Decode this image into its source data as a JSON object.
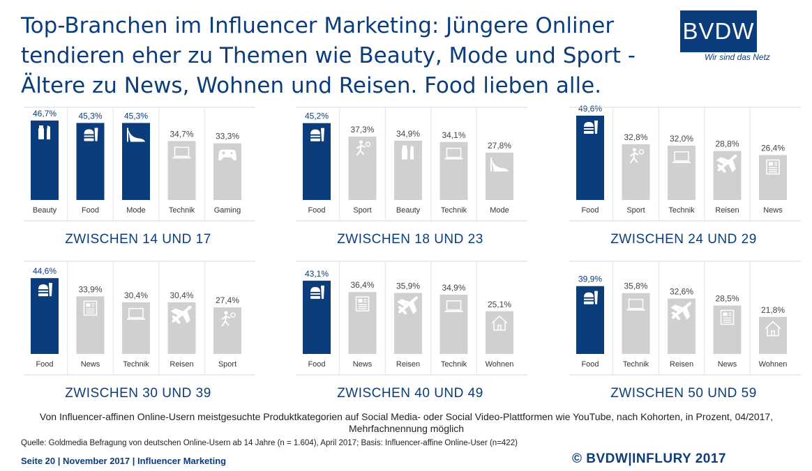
{
  "title": "Top-Branchen im Influencer Marketing: Jüngere Onliner tendieren eher zu Themen wie Beauty, Mode und Sport - Ältere zu News, Wohnen und Reisen. Food lieben alle.",
  "logo": {
    "text": "BVDW",
    "tagline": "Wir sind das Netz"
  },
  "colors": {
    "highlight": "#0b3d7d",
    "normal": "#d0d0d0",
    "icon": "#ffffff"
  },
  "chart_data": [
    {
      "type": "bar",
      "title": "ZWISCHEN 14 UND 17",
      "categories": [
        "Beauty",
        "Food",
        "Mode",
        "Technik",
        "Gaming"
      ],
      "values": [
        46.7,
        45.3,
        45.3,
        34.7,
        33.3
      ],
      "labels": [
        "46,7%",
        "45,3%",
        "45,3%",
        "34,7%",
        "33,3%"
      ],
      "highlighted": [
        true,
        true,
        true,
        false,
        false
      ],
      "icons": [
        "beauty-icon",
        "food-icon",
        "shoe-icon",
        "laptop-icon",
        "gamepad-icon"
      ],
      "ylim": [
        0,
        50
      ]
    },
    {
      "type": "bar",
      "title": "ZWISCHEN 18 UND 23",
      "categories": [
        "Food",
        "Sport",
        "Beauty",
        "Technik",
        "Mode"
      ],
      "values": [
        45.2,
        37.3,
        34.9,
        34.1,
        27.8
      ],
      "labels": [
        "45,2%",
        "37,3%",
        "34,9%",
        "34,1%",
        "27,8%"
      ],
      "highlighted": [
        true,
        false,
        false,
        false,
        false
      ],
      "icons": [
        "food-icon",
        "sport-icon",
        "beauty-icon",
        "laptop-icon",
        "shoe-icon"
      ],
      "ylim": [
        0,
        50
      ]
    },
    {
      "type": "bar",
      "title": "ZWISCHEN 24 UND 29",
      "categories": [
        "Food",
        "Sport",
        "Technik",
        "Reisen",
        "News"
      ],
      "values": [
        49.6,
        32.8,
        32.0,
        28.8,
        26.4
      ],
      "labels": [
        "49,6%",
        "32,8%",
        "32,0%",
        "28,8%",
        "26,4%"
      ],
      "highlighted": [
        true,
        false,
        false,
        false,
        false
      ],
      "icons": [
        "food-icon",
        "sport-icon",
        "laptop-icon",
        "plane-icon",
        "newspaper-icon"
      ],
      "ylim": [
        0,
        50
      ]
    },
    {
      "type": "bar",
      "title": "ZWISCHEN 30 UND 39",
      "categories": [
        "Food",
        "News",
        "Technik",
        "Reisen",
        "Sport"
      ],
      "values": [
        44.6,
        33.9,
        30.4,
        30.4,
        27.4
      ],
      "labels": [
        "44,6%",
        "33,9%",
        "30,4%",
        "30,4%",
        "27,4%"
      ],
      "highlighted": [
        true,
        false,
        false,
        false,
        false
      ],
      "icons": [
        "food-icon",
        "newspaper-icon",
        "laptop-icon",
        "plane-icon",
        "sport-icon"
      ],
      "ylim": [
        0,
        50
      ]
    },
    {
      "type": "bar",
      "title": "ZWISCHEN 40 UND 49",
      "categories": [
        "Food",
        "News",
        "Reisen",
        "Technik",
        "Wohnen"
      ],
      "values": [
        43.1,
        36.4,
        35.9,
        34.9,
        25.1
      ],
      "labels": [
        "43,1%",
        "36,4%",
        "35,9%",
        "34,9%",
        "25,1%"
      ],
      "highlighted": [
        true,
        false,
        false,
        false,
        false
      ],
      "icons": [
        "food-icon",
        "newspaper-icon",
        "plane-icon",
        "laptop-icon",
        "house-icon"
      ],
      "ylim": [
        0,
        50
      ]
    },
    {
      "type": "bar",
      "title": "ZWISCHEN 50 UND 59",
      "categories": [
        "Food",
        "Technik",
        "Reisen",
        "News",
        "Wohnen"
      ],
      "values": [
        39.9,
        35.8,
        32.6,
        28.5,
        21.8
      ],
      "labels": [
        "39,9%",
        "35,8%",
        "32,6%",
        "28,5%",
        "21,8%"
      ],
      "highlighted": [
        true,
        false,
        false,
        false,
        false
      ],
      "icons": [
        "food-icon",
        "laptop-icon",
        "plane-icon",
        "newspaper-icon",
        "house-icon"
      ],
      "ylim": [
        0,
        50
      ]
    }
  ],
  "subtitle": "Von Influencer-affinen Online-Usern meistgesuchte Produktkategorien auf Social Media- oder Social Video-Plattformen wie YouTube, nach Kohorten, in Prozent, 04/2017, Mehrfachnennung möglich",
  "source": "Quelle: Goldmedia Befragung von deutschen Online-Usern ab 14 Jahre (n = 1.604), April 2017; Basis: Influencer-affine Online-User (n=422)",
  "footer": {
    "left": "Seite 20 | November 2017 | Influencer Marketing",
    "right": "© BVDW|INFLURY 2017"
  }
}
